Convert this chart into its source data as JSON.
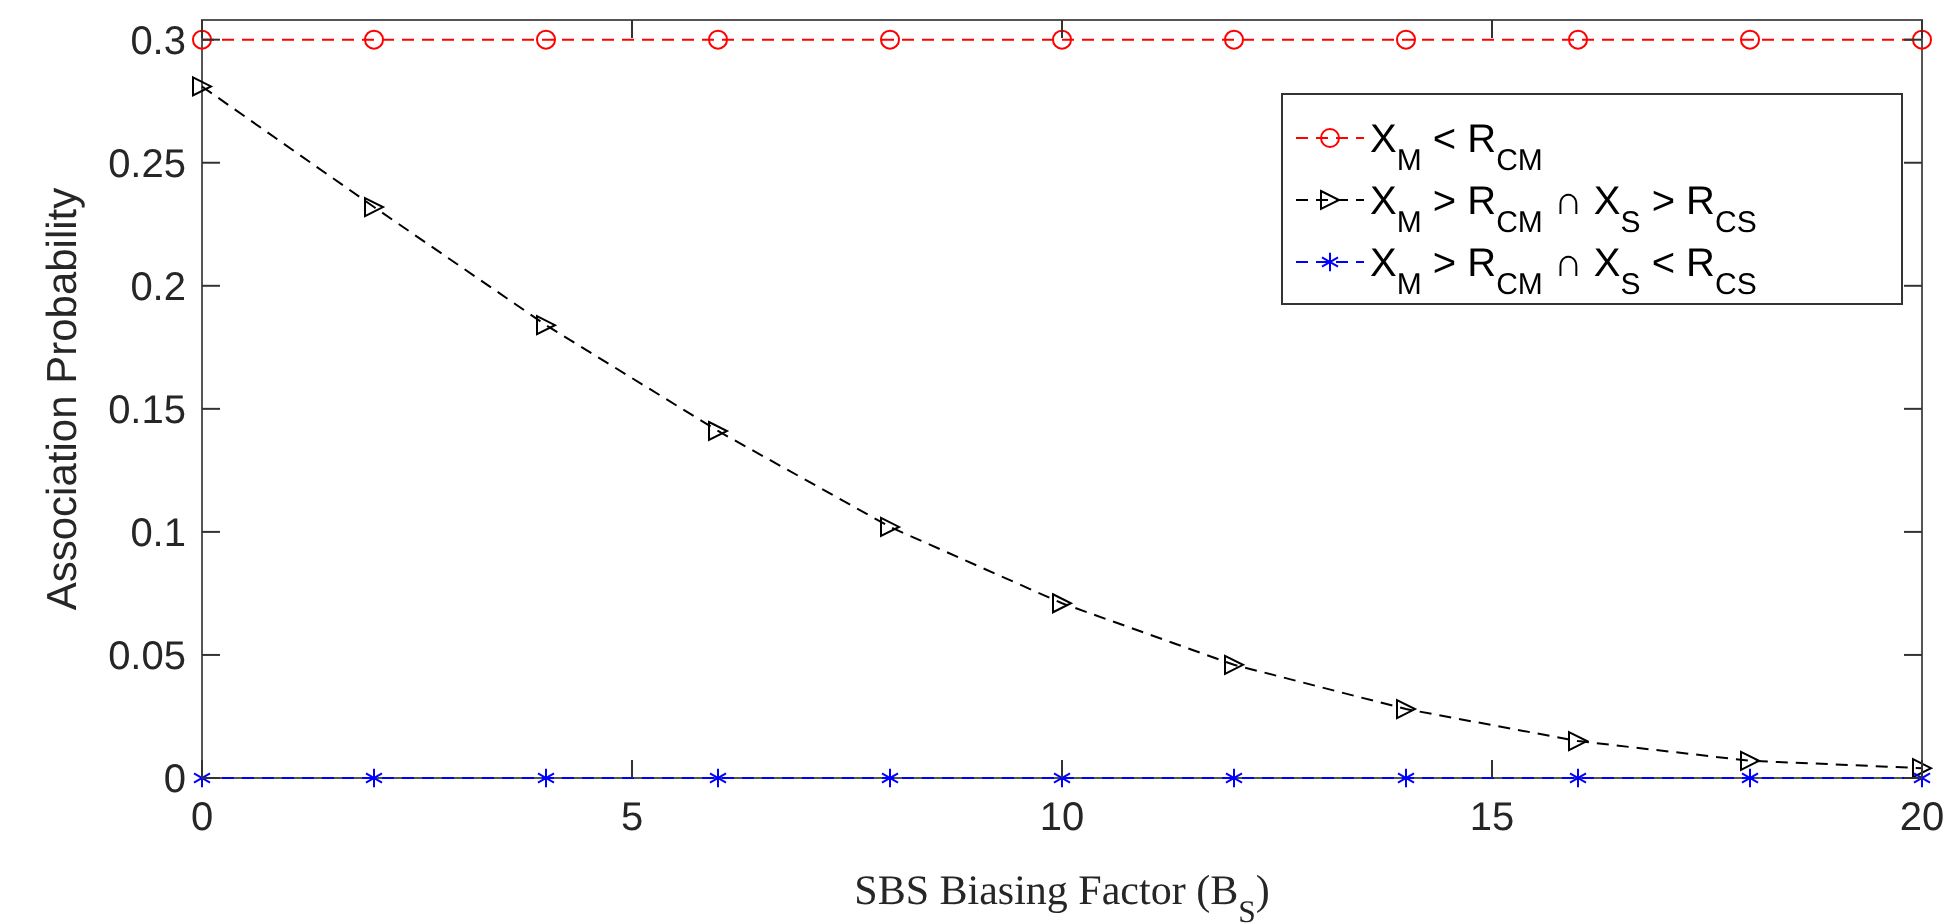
{
  "chart_data": {
    "type": "line",
    "xlabel": "SBS Biasing Factor (B$_{S}$)",
    "ylabel": "Association Probability",
    "x": [
      0,
      2,
      4,
      6,
      8,
      10,
      12,
      14,
      16,
      18,
      20
    ],
    "series": [
      {
        "name": "X$_{M}$ < R$_{CM}$",
        "color": "#ff0000",
        "marker": "circle",
        "values": [
          0.3,
          0.3,
          0.3,
          0.3,
          0.3,
          0.3,
          0.3,
          0.3,
          0.3,
          0.3,
          0.3
        ]
      },
      {
        "name": "X$_{M}$ > R$_{CM}$ ∩ X$_{S}$ > R$_{CS}$",
        "color": "#000000",
        "marker": "triangle",
        "values": [
          0.281,
          0.232,
          0.184,
          0.141,
          0.102,
          0.071,
          0.046,
          0.028,
          0.015,
          0.007,
          0.004
        ]
      },
      {
        "name": "X$_{M}$ > R$_{CM}$ ∩ X$_{S}$ < R$_{CS}$",
        "color": "#0000ff",
        "marker": "cross",
        "values": [
          0,
          0,
          0,
          0,
          0,
          0,
          0,
          0,
          0,
          0,
          0
        ]
      }
    ],
    "xlim": [
      0,
      20
    ],
    "xticks": [
      0,
      5,
      10,
      15,
      20
    ],
    "ylim": [
      0,
      0.308
    ],
    "yticks": [
      0,
      0.05,
      0.1,
      0.15,
      0.2,
      0.25,
      0.3
    ],
    "grid": false,
    "legend": "top right",
    "line_style": "dashed"
  }
}
